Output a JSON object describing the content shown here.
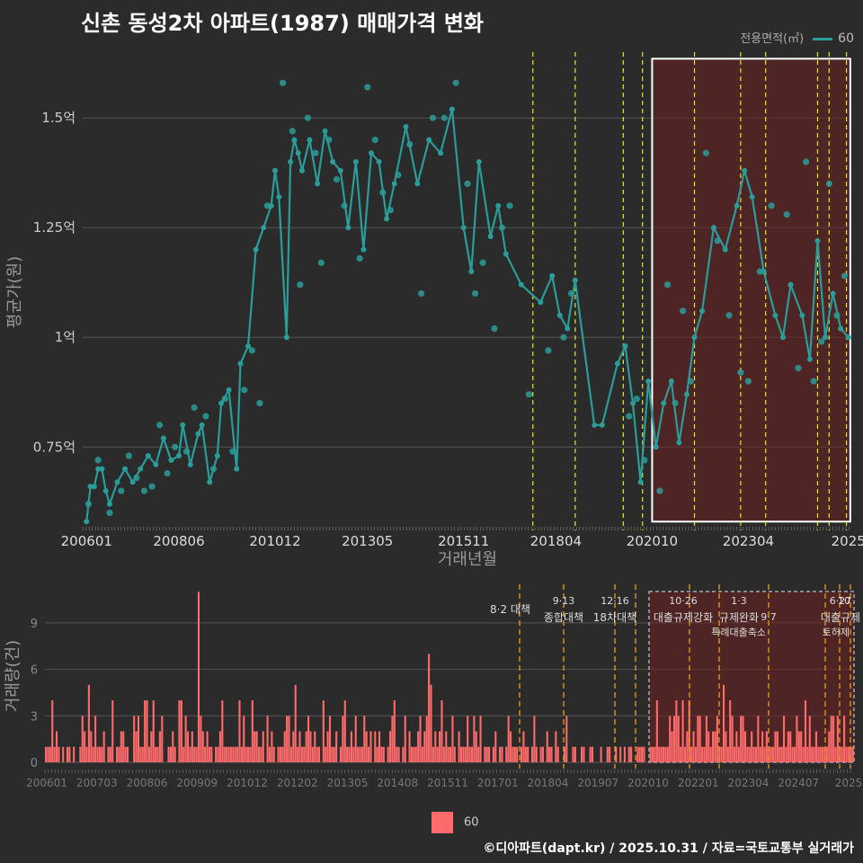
{
  "title": "신촌 동성2차 아파트(1987) 매매가격 변화",
  "legend": {
    "title": "전용면적(㎡)",
    "label": "60"
  },
  "colors": {
    "line": "#2a9d9a",
    "bar": "#ff6b6b",
    "event_line": "#e6e632",
    "shade": "#6b1f1f",
    "grid": "#555555",
    "text": "#cccccc"
  },
  "footer": "©디아파트(dapt.kr) / 2025.10.31 / 자료=국토교통부 실거래가",
  "bar_legend_label": "60",
  "chart_data": [
    {
      "type": "line",
      "title": "신촌 동성2차 아파트(1987) 매매가격 변화",
      "xlabel": "거래년월",
      "ylabel": "평균가(원)",
      "x_ticks": [
        "200601",
        "200806",
        "201012",
        "201305",
        "201511",
        "201804",
        "202010",
        "202304",
        "2025"
      ],
      "y_ticks": [
        {
          "v": 0.75,
          "label": "0.75억"
        },
        {
          "v": 1.0,
          "label": "1억"
        },
        {
          "v": 1.25,
          "label": "1.25억"
        },
        {
          "v": 1.5,
          "label": "1.5억"
        }
      ],
      "ylim": [
        0.56,
        1.65
      ],
      "xlim": [
        2005.9,
        2025.9
      ],
      "series": [
        {
          "name": "60",
          "x": [
            2006.0,
            2006.1,
            2006.2,
            2006.3,
            2006.4,
            2006.5,
            2006.6,
            2006.8,
            2007.0,
            2007.2,
            2007.4,
            2007.6,
            2007.8,
            2008.0,
            2008.2,
            2008.4,
            2008.5,
            2008.7,
            2008.9,
            2009.0,
            2009.2,
            2009.4,
            2009.5,
            2009.7,
            2009.9,
            2010.0,
            2010.2,
            2010.4,
            2010.6,
            2010.8,
            2010.9,
            2011.0,
            2011.2,
            2011.3,
            2011.4,
            2011.5,
            2011.6,
            2011.8,
            2012.0,
            2012.2,
            2012.4,
            2012.6,
            2012.8,
            2013.0,
            2013.2,
            2013.4,
            2013.6,
            2013.8,
            2014.0,
            2014.3,
            2014.6,
            2014.9,
            2015.2,
            2015.5,
            2015.8,
            2016.0,
            2016.2,
            2016.5,
            2016.7,
            2016.9,
            2017.3,
            2017.8,
            2018.1,
            2018.3,
            2018.5,
            2018.7,
            2019.2,
            2019.4,
            2019.8,
            2020.0,
            2020.2,
            2020.4,
            2020.6,
            2020.8,
            2021.0,
            2021.2,
            2021.4,
            2021.6,
            2021.8,
            2022.0,
            2022.3,
            2022.6,
            2022.9,
            2023.1,
            2023.3,
            2023.6,
            2023.9,
            2024.1,
            2024.3,
            2024.6,
            2024.8,
            2025.0,
            2025.2,
            2025.4,
            2025.6,
            2025.8
          ],
          "y": [
            0.58,
            0.66,
            0.66,
            0.7,
            0.7,
            0.65,
            0.62,
            0.67,
            0.7,
            0.67,
            0.7,
            0.73,
            0.71,
            0.77,
            0.72,
            0.73,
            0.8,
            0.71,
            0.78,
            0.8,
            0.67,
            0.73,
            0.85,
            0.88,
            0.7,
            0.94,
            0.98,
            1.2,
            1.25,
            1.3,
            1.38,
            1.32,
            1.0,
            1.4,
            1.45,
            1.42,
            1.38,
            1.45,
            1.35,
            1.47,
            1.4,
            1.38,
            1.25,
            1.4,
            1.2,
            1.42,
            1.4,
            1.27,
            1.35,
            1.48,
            1.35,
            1.45,
            1.42,
            1.52,
            1.25,
            1.15,
            1.4,
            1.23,
            1.3,
            1.19,
            1.12,
            1.08,
            1.14,
            1.05,
            1.02,
            1.13,
            0.8,
            0.8,
            0.94,
            0.98,
            0.85,
            0.67,
            0.9,
            0.75,
            0.85,
            0.9,
            0.76,
            0.87,
            1.0,
            1.06,
            1.25,
            1.2,
            1.3,
            1.38,
            1.32,
            1.15,
            1.05,
            1.0,
            1.12,
            1.05,
            0.95,
            1.22,
            1.0,
            1.1,
            1.02,
            1.0
          ]
        }
      ],
      "scatter_x": [
        2006.05,
        2006.3,
        2006.6,
        2006.9,
        2007.1,
        2007.3,
        2007.5,
        2007.7,
        2007.9,
        2008.1,
        2008.3,
        2008.6,
        2008.8,
        2009.1,
        2009.3,
        2009.6,
        2009.8,
        2010.1,
        2010.3,
        2010.5,
        2010.7,
        2011.1,
        2011.35,
        2011.55,
        2011.75,
        2011.95,
        2012.1,
        2012.3,
        2012.5,
        2012.7,
        2013.1,
        2013.3,
        2013.5,
        2013.7,
        2013.9,
        2014.1,
        2014.4,
        2014.7,
        2015.0,
        2015.3,
        2015.6,
        2015.9,
        2016.1,
        2016.3,
        2016.6,
        2016.8,
        2017.0,
        2017.5,
        2018.0,
        2018.4,
        2018.6,
        2020.1,
        2020.3,
        2020.5,
        2020.9,
        2021.1,
        2021.3,
        2021.5,
        2021.7,
        2022.1,
        2022.4,
        2022.7,
        2023.0,
        2023.2,
        2023.5,
        2023.8,
        2024.2,
        2024.5,
        2024.7,
        2024.9,
        2025.1,
        2025.3,
        2025.5,
        2025.7
      ],
      "scatter_y": [
        0.62,
        0.72,
        0.6,
        0.65,
        0.73,
        0.68,
        0.65,
        0.66,
        0.8,
        0.69,
        0.75,
        0.74,
        0.84,
        0.82,
        0.7,
        0.86,
        0.74,
        0.88,
        0.97,
        0.85,
        1.3,
        1.58,
        1.47,
        1.12,
        1.5,
        1.42,
        1.17,
        1.45,
        1.36,
        1.3,
        1.18,
        1.57,
        1.45,
        1.33,
        1.29,
        1.37,
        1.44,
        1.1,
        1.5,
        1.5,
        1.58,
        1.35,
        1.1,
        1.17,
        1.02,
        1.25,
        1.3,
        0.87,
        0.97,
        1.0,
        1.1,
        0.82,
        0.86,
        0.72,
        0.65,
        1.12,
        0.85,
        1.06,
        0.9,
        1.42,
        1.22,
        1.05,
        0.92,
        0.9,
        1.15,
        1.3,
        1.28,
        0.93,
        1.4,
        0.9,
        0.99,
        1.35,
        1.05,
        1.14
      ]
    },
    {
      "type": "bar",
      "xlabel": "",
      "ylabel": "거래량(건)",
      "x_ticks": [
        "200601",
        "200703",
        "200806",
        "200909",
        "201012",
        "201202",
        "201305",
        "201408",
        "201511",
        "201701",
        "201804",
        "201907",
        "202010",
        "202201",
        "202304",
        "202407",
        "2025"
      ],
      "y_ticks": [
        0,
        3,
        6,
        9
      ],
      "ylim": [
        0,
        11.2
      ],
      "counts": [
        1,
        1,
        1,
        4,
        1,
        2,
        1,
        0,
        1,
        0,
        1,
        1,
        0,
        1,
        0,
        0,
        1,
        3,
        2,
        1,
        5,
        2,
        1,
        3,
        1,
        1,
        1,
        2,
        0,
        1,
        1,
        4,
        0,
        1,
        1,
        2,
        2,
        1,
        1,
        0,
        0,
        3,
        2,
        3,
        1,
        1,
        4,
        4,
        1,
        2,
        4,
        1,
        1,
        2,
        3,
        0,
        0,
        1,
        1,
        2,
        1,
        0,
        4,
        4,
        1,
        3,
        2,
        1,
        2,
        1,
        1,
        11,
        3,
        2,
        1,
        2,
        1,
        1,
        0,
        1,
        1,
        2,
        4,
        1,
        1,
        1,
        1,
        1,
        1,
        1,
        4,
        1,
        3,
        1,
        1,
        1,
        4,
        2,
        2,
        1,
        1,
        2,
        0,
        3,
        1,
        2,
        1,
        0,
        1,
        1,
        1,
        2,
        3,
        3,
        1,
        2,
        5,
        1,
        2,
        1,
        1,
        2,
        3,
        2,
        1,
        2,
        1,
        1,
        0,
        4,
        1,
        2,
        3,
        1,
        1,
        2,
        0,
        1,
        3,
        4,
        1,
        1,
        2,
        1,
        3,
        1,
        1,
        1,
        3,
        2,
        1,
        2,
        0,
        2,
        1,
        2,
        1,
        1,
        0,
        1,
        2,
        3,
        4,
        1,
        1,
        0,
        1,
        3,
        0,
        2,
        1,
        1,
        1,
        2,
        3,
        1,
        2,
        3,
        7,
        5,
        1,
        2,
        1,
        2,
        4,
        1,
        2,
        1,
        1,
        3,
        1,
        0,
        2,
        1,
        1,
        1,
        3,
        1,
        1,
        3,
        2,
        1,
        3,
        0,
        1,
        1,
        1,
        0,
        1,
        2,
        0,
        1,
        1,
        0,
        1,
        3,
        2,
        1,
        1,
        1,
        0,
        1,
        2,
        1,
        1,
        0,
        1,
        3,
        1,
        0,
        1,
        1,
        0,
        2,
        1,
        1,
        0,
        2,
        1,
        0,
        0,
        1,
        3,
        0,
        0,
        1,
        1,
        0,
        0,
        1,
        1,
        0,
        0,
        1,
        1,
        0,
        0,
        0,
        1,
        0,
        0,
        1,
        1,
        0,
        0,
        1,
        0,
        1,
        0,
        1,
        0,
        1,
        1,
        0,
        0,
        1,
        1,
        1,
        1,
        0,
        0,
        1,
        1,
        1,
        4,
        1,
        1,
        1,
        1,
        1,
        3,
        2,
        3,
        4,
        3,
        1,
        4,
        1,
        2,
        4,
        1,
        2,
        1,
        3,
        3,
        1,
        1,
        3,
        2,
        1,
        2,
        2,
        3,
        1,
        1,
        5,
        2,
        1,
        4,
        3,
        1,
        2,
        1,
        3,
        3,
        2,
        1,
        1,
        2,
        1,
        1,
        3,
        1,
        2,
        1,
        2,
        1,
        1,
        1,
        2,
        2,
        1,
        1,
        3,
        1,
        2,
        2,
        1,
        1,
        3,
        2,
        2,
        1,
        4,
        1,
        3,
        1,
        1,
        2,
        1,
        1,
        1,
        1,
        1,
        2,
        3,
        3,
        1,
        3,
        1,
        1,
        3,
        1,
        1,
        1,
        1
      ]
    }
  ],
  "events": [
    {
      "label_date": "8·2",
      "label_text": "대책"
    },
    {
      "label_date": "9·13",
      "label_text": "종합대책"
    },
    {
      "label_date": "12·16",
      "label_text": "18차대책"
    },
    {
      "label_date": "10·26",
      "label_text": "대출규제강화"
    },
    {
      "label_date": "1·3",
      "label_text": "규제완화"
    },
    {
      "label_date": "9·7",
      "label_text": "특례대출축소"
    },
    {
      "label_date": "6·27",
      "label_text": "대출규제"
    },
    {
      "label_date": "10",
      "label_text": "토허제"
    }
  ],
  "event_years": [
    2017.6,
    2018.7,
    2019.95,
    2020.45,
    2021.8,
    2023.0,
    2023.65,
    2025.0,
    2025.3,
    2025.75
  ]
}
